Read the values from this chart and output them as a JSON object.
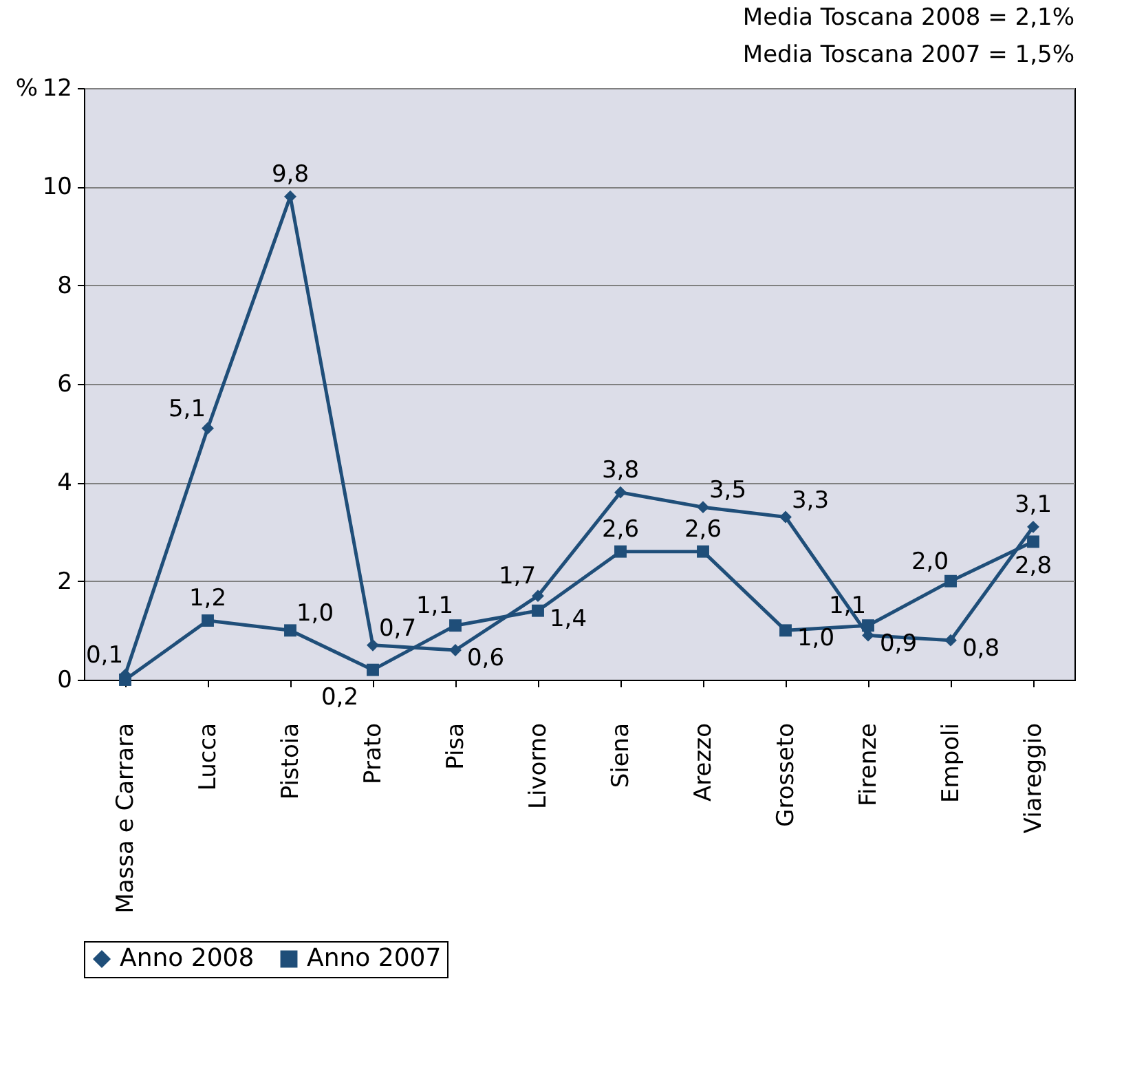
{
  "chart_data": {
    "type": "line",
    "annotations": [
      "Media Toscana 2008 = 2,1%",
      "Media Toscana 2007 = 1,5%"
    ],
    "ylabel": "%",
    "categories": [
      "Massa e Carrara",
      "Lucca",
      "Pistoia",
      "Prato",
      "Pisa",
      "Livorno",
      "Siena",
      "Arezzo",
      "Grosseto",
      "Firenze",
      "Empoli",
      "Viareggio"
    ],
    "series": [
      {
        "name": "Anno 2008",
        "color": "#1f4e79",
        "marker": "diamond",
        "values": [
          0.1,
          5.1,
          9.8,
          0.7,
          0.6,
          1.7,
          3.8,
          3.5,
          3.3,
          0.9,
          0.8,
          3.1
        ],
        "value_labels": [
          "0,1",
          "5,1",
          "9,8",
          "0,7",
          "0,6",
          "1,7",
          "3,8",
          "3,5",
          "3,3",
          "0,9",
          "0,8",
          "3,1"
        ]
      },
      {
        "name": "Anno 2007",
        "color": "#1f4e79",
        "marker": "square",
        "values": [
          0.0,
          1.2,
          1.0,
          0.2,
          1.1,
          1.4,
          2.6,
          2.6,
          1.0,
          1.1,
          2.0,
          2.8
        ],
        "value_labels": [
          null,
          "1,2",
          "1,0",
          "0,2",
          "1,1",
          "1,4",
          "2,6",
          "2,6",
          "1,0",
          "1,1",
          "2,0",
          "2,8"
        ]
      }
    ],
    "ylim": [
      0,
      12
    ],
    "yticks": [
      0,
      2,
      4,
      6,
      8,
      10,
      12
    ],
    "grid": "y",
    "legend": "bottom",
    "line_style": "solid"
  }
}
